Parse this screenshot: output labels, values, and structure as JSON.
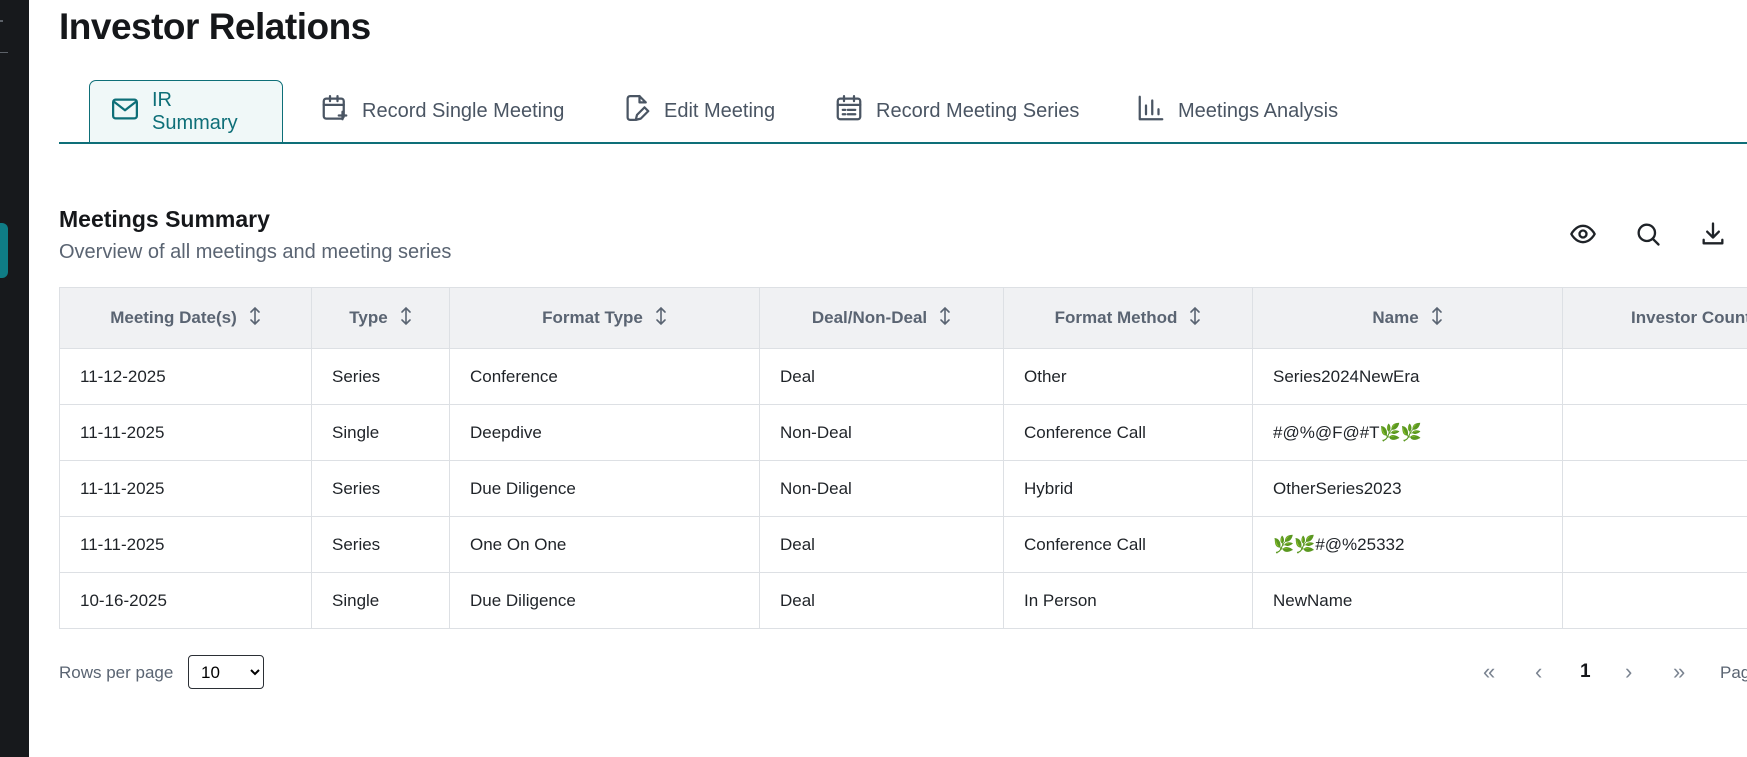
{
  "page": {
    "title": "Investor Relations"
  },
  "tabs": [
    {
      "label": "IR Summary",
      "icon": "mail-icon",
      "active": true
    },
    {
      "label": "Record Single Meeting",
      "icon": "calendar-plus-icon",
      "active": false
    },
    {
      "label": "Edit Meeting",
      "icon": "file-edit-icon",
      "active": false
    },
    {
      "label": "Record Meeting Series",
      "icon": "calendar-list-icon",
      "active": false
    },
    {
      "label": "Meetings Analysis",
      "icon": "bar-chart-icon",
      "active": false
    }
  ],
  "section": {
    "title": "Meetings Summary",
    "subtitle": "Overview of all meetings and meeting series"
  },
  "toolbar": {
    "icons": [
      "eye-icon",
      "search-icon",
      "download-icon"
    ]
  },
  "table": {
    "columns": [
      "Meeting Date(s)",
      "Type",
      "Format Type",
      "Deal/Non-Deal",
      "Format Method",
      "Name",
      "Investor Count"
    ],
    "rows": [
      [
        "11-12-2025",
        "Series",
        "Conference",
        "Deal",
        "Other",
        "Series2024NewEra",
        ""
      ],
      [
        "11-11-2025",
        "Single",
        "Deepdive",
        "Non-Deal",
        "Conference Call",
        "#@%@F@#T🌿🌿",
        ""
      ],
      [
        "11-11-2025",
        "Series",
        "Due Diligence",
        "Non-Deal",
        "Hybrid",
        "OtherSeries2023",
        ""
      ],
      [
        "11-11-2025",
        "Series",
        "One On One",
        "Deal",
        "Conference Call",
        "🌿🌿#@%25332",
        ""
      ],
      [
        "10-16-2025",
        "Single",
        "Due Diligence",
        "Deal",
        "In Person",
        "NewName",
        ""
      ]
    ]
  },
  "pagination": {
    "rows_per_page_label": "Rows per page",
    "rows_per_page_value": "10",
    "first": "«",
    "prev": "‹",
    "current_page": "1",
    "next": "›",
    "last": "»",
    "page_label": "Pag"
  },
  "colors": {
    "accent": "#0e6f78",
    "sidebar": "#17191c"
  }
}
